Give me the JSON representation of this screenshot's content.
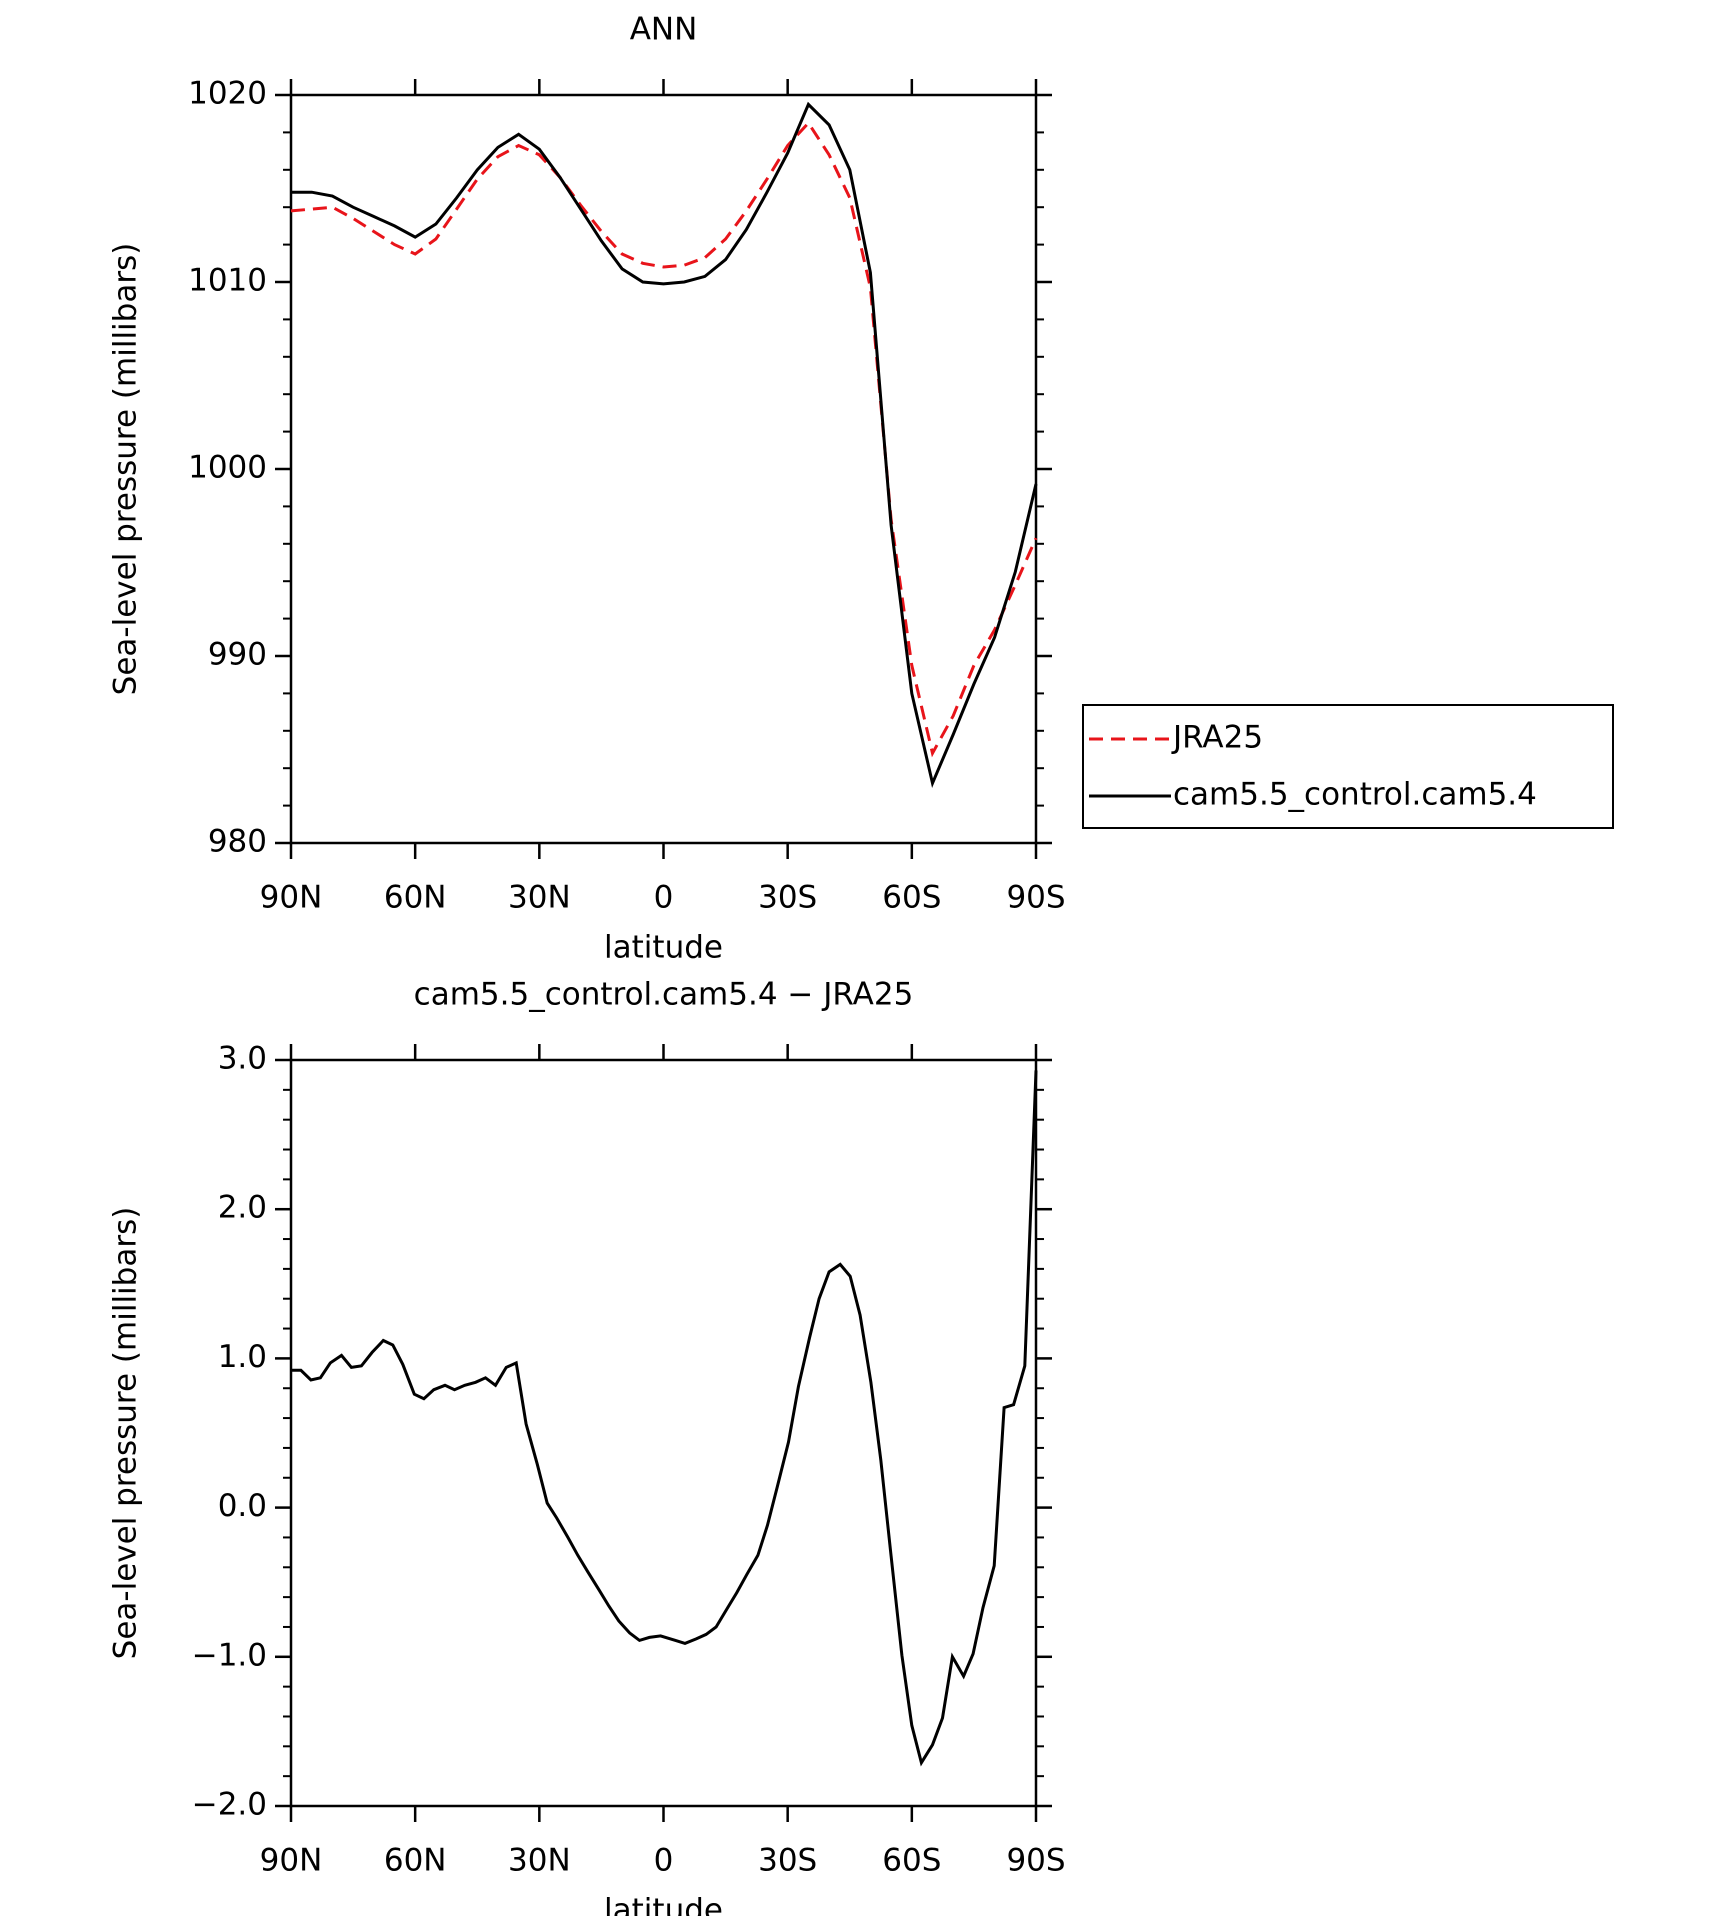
{
  "chart_data": [
    {
      "type": "line",
      "title": "ANN",
      "x_label": "latitude",
      "y_label": "Sea-level pressure (millibars)",
      "x": [
        90,
        85,
        80,
        75,
        70,
        65,
        60,
        55,
        50,
        45,
        40,
        35,
        30,
        25,
        20,
        15,
        10,
        5,
        0,
        -5,
        -10,
        -15,
        -20,
        -25,
        -30,
        -35,
        -40,
        -45,
        -50,
        -55,
        -60,
        -65,
        -70,
        -75,
        -80,
        -85,
        -90
      ],
      "series": [
        {
          "name": "JRA25",
          "color": "#e8141a",
          "dash": "dashed",
          "values": [
            1013.8,
            1013.9,
            1014.0,
            1013.4,
            1012.7,
            1012.0,
            1011.5,
            1012.3,
            1013.9,
            1015.5,
            1016.7,
            1017.3,
            1016.8,
            1015.6,
            1014.1,
            1012.7,
            1011.5,
            1011.0,
            1010.8,
            1010.9,
            1011.3,
            1012.3,
            1013.8,
            1015.5,
            1017.3,
            1018.5,
            1016.8,
            1014.5,
            1009.7,
            997.3,
            989.5,
            984.8,
            986.8,
            989.5,
            991.4,
            993.8,
            996.3
          ]
        },
        {
          "name": "cam5.5_control.cam5.4",
          "color": "#000000",
          "dash": "solid",
          "values": [
            1014.8,
            1014.8,
            1014.6,
            1014.0,
            1013.5,
            1013.0,
            1012.4,
            1013.1,
            1014.5,
            1016.0,
            1017.2,
            1017.9,
            1017.1,
            1015.6,
            1013.9,
            1012.2,
            1010.7,
            1010.0,
            1009.9,
            1010.0,
            1010.3,
            1011.2,
            1012.8,
            1014.8,
            1016.9,
            1019.5,
            1018.4,
            1016.0,
            1010.5,
            997.0,
            988.0,
            983.2,
            985.8,
            988.5,
            991.0,
            994.5,
            999.2
          ]
        }
      ],
      "xlim": [
        90,
        -90
      ],
      "xticks": [
        {
          "value": 90,
          "label": "90N"
        },
        {
          "value": 60,
          "label": "60N"
        },
        {
          "value": 30,
          "label": "30N"
        },
        0,
        {
          "value": -30,
          "label": "30S"
        },
        {
          "value": -60,
          "label": "60S"
        },
        {
          "value": -90,
          "label": "90S"
        }
      ],
      "ylim": [
        980,
        1020
      ],
      "yticks": [
        980,
        990,
        1000,
        1010,
        1020
      ],
      "legend": "right"
    },
    {
      "type": "line",
      "title": "cam5.5_control.cam5.4 − JRA25",
      "x_label": "latitude",
      "y_label": "Sea-level pressure (millibars)",
      "x": [
        90,
        87.6,
        85.2,
        82.9,
        80.5,
        77.8,
        75.4,
        73.0,
        70.4,
        67.7,
        65.4,
        63.0,
        60.2,
        57.9,
        55.5,
        52.8,
        50.5,
        48.0,
        45.4,
        43.0,
        40.6,
        38.0,
        35.6,
        33.2,
        30.5,
        28.1,
        25.8,
        23.1,
        20.7,
        18.3,
        15.6,
        13.2,
        10.8,
        8.2,
        5.8,
        3.4,
        0.7,
        -2.9,
        -5.2,
        -7.9,
        -10.3,
        -12.7,
        -15.3,
        -17.7,
        -20.1,
        -22.8,
        -25.1,
        -27.5,
        -30.2,
        -32.6,
        -35.3,
        -37.6,
        -40.0,
        -42.7,
        -45.1,
        -47.5,
        -50.1,
        -52.5,
        -54.9,
        -57.6,
        -60.0,
        -62.3,
        -65.0,
        -67.4,
        -69.8,
        -72.5,
        -74.8,
        -77.2,
        -79.9,
        -82.3,
        -84.6,
        -87.3,
        -90
      ],
      "series": [
        {
          "name": "cam5.5_control.cam5.4 − JRA25",
          "color": "#000000",
          "dash": "solid",
          "values": [
            0.92,
            0.92,
            0.855,
            0.87,
            0.97,
            1.02,
            0.94,
            0.95,
            1.04,
            1.12,
            1.09,
            0.96,
            0.76,
            0.73,
            0.79,
            0.82,
            0.79,
            0.82,
            0.84,
            0.87,
            0.82,
            0.94,
            0.97,
            0.56,
            0.29,
            0.03,
            -0.07,
            -0.2,
            -0.32,
            -0.43,
            -0.55,
            -0.66,
            -0.76,
            -0.84,
            -0.89,
            -0.87,
            -0.86,
            -0.89,
            -0.91,
            -0.88,
            -0.85,
            -0.8,
            -0.68,
            -0.57,
            -0.45,
            -0.32,
            -0.12,
            0.14,
            0.44,
            0.81,
            1.14,
            1.4,
            1.58,
            1.63,
            1.55,
            1.29,
            0.84,
            0.32,
            -0.3,
            -0.99,
            -1.46,
            -1.71,
            -1.59,
            -1.41,
            -1.0,
            -1.13,
            -0.98,
            -0.67,
            -0.39,
            0.67,
            0.69,
            0.95,
            2.93
          ]
        }
      ],
      "xlim": [
        90,
        -90
      ],
      "xticks": [
        {
          "value": 90,
          "label": "90N"
        },
        {
          "value": 60,
          "label": "60N"
        },
        {
          "value": 30,
          "label": "30N"
        },
        0,
        {
          "value": -30,
          "label": "30S"
        },
        {
          "value": -60,
          "label": "60S"
        },
        {
          "value": -90,
          "label": "90S"
        }
      ],
      "ylim": [
        -2,
        3
      ],
      "yticks": [
        {
          "value": -2,
          "label": "−2.0"
        },
        {
          "value": -1,
          "label": "−1.0"
        },
        {
          "value": 0,
          "label": "0.0"
        },
        {
          "value": 1,
          "label": "1.0"
        },
        {
          "value": 2,
          "label": "2.0"
        },
        {
          "value": 3,
          "label": "3.0"
        }
      ]
    }
  ]
}
